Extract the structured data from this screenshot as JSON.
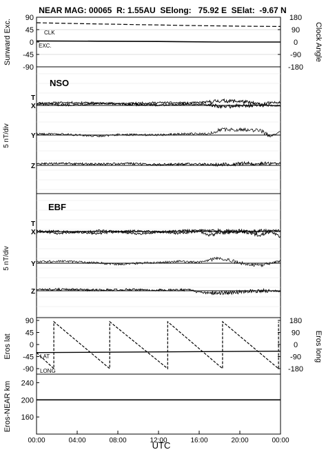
{
  "header": {
    "title": "NEAR MAG: 00065  R: 1.55AU  SElong:   75.92 E  SElat:  -9.67 N"
  },
  "chart_data": [
    {
      "type": "line",
      "panel": "sunward-clock",
      "ylabel_left": "Sunward Exc.",
      "ylabel_right": "Clock Angle",
      "left_ticks": [
        "90",
        "45",
        "0",
        "-45",
        "-90"
      ],
      "right_ticks": [
        "180",
        "90",
        "0",
        "-90",
        "-180"
      ],
      "ylim_left": [
        -90,
        90
      ],
      "ylim_right": [
        -180,
        180
      ],
      "series": [
        {
          "name": "CLK",
          "axis": "right",
          "style": "dashed",
          "x": [
            0,
            2,
            4,
            6,
            8,
            10,
            12,
            14,
            16,
            18,
            20,
            22,
            24
          ],
          "y": [
            140,
            137,
            134,
            131,
            129,
            126,
            124,
            121,
            119,
            117,
            115,
            114,
            113
          ]
        },
        {
          "name": "EXC.",
          "axis": "left",
          "style": "solid",
          "x": [
            0,
            6,
            12,
            18,
            24
          ],
          "y": [
            4,
            3,
            2,
            0,
            0
          ]
        }
      ]
    },
    {
      "type": "line",
      "panel": "NSO",
      "label": "NSO",
      "ylabel": "5 nT/div",
      "components": [
        {
          "name": "T",
          "x": [
            0,
            3,
            6,
            9,
            12,
            15,
            17,
            18,
            20,
            22,
            24
          ],
          "y": [
            1.0,
            1.2,
            1.0,
            0.8,
            1.2,
            1.0,
            1.5,
            2.0,
            1.8,
            0.5,
            1.5
          ]
        },
        {
          "name": "X",
          "x": [
            0,
            3,
            6,
            9,
            12,
            15,
            17,
            18,
            20,
            22,
            24
          ],
          "y": [
            0.5,
            0.2,
            0.8,
            0.4,
            0.2,
            0.6,
            0.2,
            -0.5,
            -0.2,
            0.2,
            -0.2
          ]
        },
        {
          "name": "Y",
          "x": [
            0,
            3,
            6,
            8,
            12,
            15,
            17,
            18,
            20,
            22,
            23,
            24
          ],
          "y": [
            0.5,
            0.3,
            -0.5,
            0.2,
            0.1,
            0.6,
            0.5,
            2.3,
            2.4,
            2.0,
            -0.5,
            1.5
          ]
        },
        {
          "name": "Z",
          "x": [
            0,
            3,
            6,
            9,
            12,
            15,
            18,
            21,
            24
          ],
          "y": [
            0.6,
            0.8,
            0.5,
            0.8,
            0.3,
            0.6,
            0.4,
            0.8,
            0.8
          ]
        }
      ]
    },
    {
      "type": "line",
      "panel": "EBF",
      "label": "EBF",
      "ylabel": "5 nT/div",
      "components": [
        {
          "name": "T",
          "x": [
            0,
            2,
            4,
            6,
            8,
            10,
            12,
            14,
            16,
            18,
            20,
            22,
            24
          ],
          "y": [
            -0.2,
            0.3,
            -0.3,
            0.4,
            0.0,
            0.2,
            -0.2,
            0.3,
            0.5,
            0.3,
            -0.2,
            0.2,
            0.4
          ]
        },
        {
          "name": "X",
          "x": [
            0,
            2,
            4,
            6,
            8,
            10,
            12,
            14,
            16,
            17,
            18,
            20,
            22,
            23,
            24
          ],
          "y": [
            0.3,
            -0.8,
            -0.2,
            -0.9,
            -0.1,
            -1.0,
            -0.2,
            -0.8,
            0.1,
            -1.8,
            -0.6,
            0.3,
            -1.5,
            0.2,
            -2.5
          ]
        },
        {
          "name": "Y",
          "x": [
            0,
            2,
            4,
            6,
            8,
            10,
            12,
            14,
            16,
            18,
            20,
            22,
            24
          ],
          "y": [
            0.5,
            0.9,
            0.6,
            0.2,
            -0.5,
            0.0,
            0.3,
            0.8,
            0.4,
            2.2,
            0.2,
            -1.0,
            1.0
          ]
        },
        {
          "name": "Z",
          "x": [
            0,
            3,
            6,
            9,
            12,
            15,
            16,
            18,
            20,
            22,
            24
          ],
          "y": [
            0.5,
            0.6,
            0.3,
            0.5,
            0.3,
            0.4,
            -0.8,
            -1.0,
            -0.5,
            0.0,
            0.0
          ]
        }
      ]
    },
    {
      "type": "line",
      "panel": "eros-position",
      "ylabel_left": "Eros lat",
      "ylabel_right": "Eros long",
      "left_ticks": [
        "90",
        "45",
        "0",
        "-45",
        "-90"
      ],
      "right_ticks": [
        "180",
        "90",
        "0",
        "-90",
        "-180"
      ],
      "ylim_left": [
        -90,
        90
      ],
      "ylim_right": [
        -180,
        180
      ],
      "series": [
        {
          "name": "LAT",
          "axis": "left",
          "style": "solid",
          "x": [
            0,
            24
          ],
          "y": [
            -30,
            -25
          ]
        },
        {
          "name": "LONG",
          "axis": "right",
          "style": "dashed",
          "x": [
            0,
            1.7,
            1.7,
            7.2,
            7.2,
            12.9,
            12.9,
            18.3,
            18.3,
            23.8,
            23.8
          ],
          "y": [
            -60,
            -180,
            170,
            -180,
            170,
            -180,
            170,
            -180,
            170,
            -180,
            170
          ]
        }
      ]
    },
    {
      "type": "line",
      "panel": "eros-near-distance",
      "ylabel": "Eros-NEAR km",
      "ticks": [
        "240",
        "200",
        "160"
      ],
      "ylim": [
        120,
        260
      ],
      "series": [
        {
          "style": "solid",
          "x": [
            0,
            24
          ],
          "y": [
            200,
            200
          ]
        }
      ]
    }
  ],
  "x_axis": {
    "label": "UTC",
    "ticks": [
      "00:00",
      "04:00",
      "08:00",
      "12:00",
      "16:00",
      "20:00",
      "00:00"
    ]
  }
}
